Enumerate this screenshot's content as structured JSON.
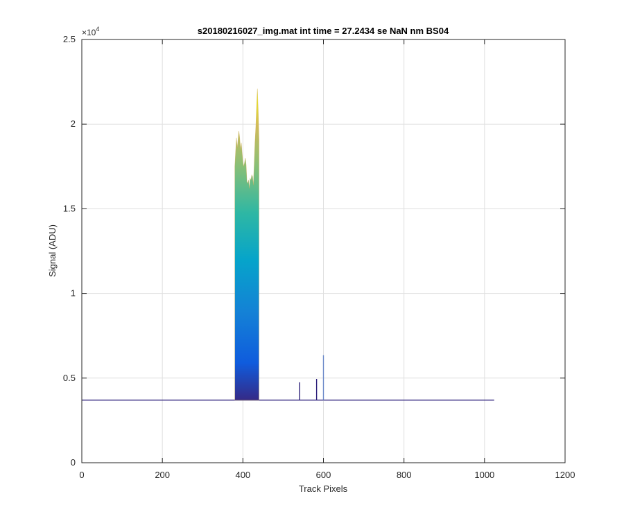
{
  "chart_data": {
    "type": "area",
    "title": "s20180216027_img.mat int time = 27.2434 se  NaN nm BS04",
    "xlabel": "Track Pixels",
    "ylabel": "Signal (ADU)",
    "xlim": [
      0,
      1200
    ],
    "ylim": [
      0,
      25000
    ],
    "y_exponent_label": "×10",
    "y_exponent_power": "4",
    "xticks": [
      "0",
      "200",
      "400",
      "600",
      "800",
      "1000",
      "1200"
    ],
    "xtick_values": [
      0,
      200,
      400,
      600,
      800,
      1000,
      1200
    ],
    "yticks": [
      "0",
      "0.5",
      "1",
      "1.5",
      "2",
      "2.5"
    ],
    "ytick_values": [
      0,
      5000,
      10000,
      15000,
      20000,
      25000
    ],
    "grid": true,
    "baseline": 3700,
    "x_end": 1024,
    "colormap": "parula",
    "band_edges": [
      380,
      440
    ],
    "outline": {
      "x": [
        380,
        382,
        384,
        386,
        388,
        390,
        392,
        394,
        396,
        398,
        400,
        402,
        404,
        406,
        408,
        410,
        412,
        414,
        416,
        418,
        420,
        422,
        424,
        426,
        428,
        430,
        432,
        434,
        436,
        438,
        440
      ],
      "y": [
        17500,
        18400,
        19200,
        18600,
        19100,
        19600,
        19200,
        18500,
        18900,
        18300,
        17800,
        17500,
        17700,
        18000,
        17600,
        16600,
        16500,
        16700,
        16200,
        16800,
        16700,
        17000,
        16900,
        16400,
        17600,
        18900,
        19800,
        21000,
        22100,
        20800,
        19100
      ]
    },
    "spikes": [
      {
        "x": 541,
        "y": 4750
      },
      {
        "x": 583,
        "y": 4950
      },
      {
        "x": 600,
        "y": 6350
      }
    ],
    "line_color": "#2b1e7a"
  }
}
